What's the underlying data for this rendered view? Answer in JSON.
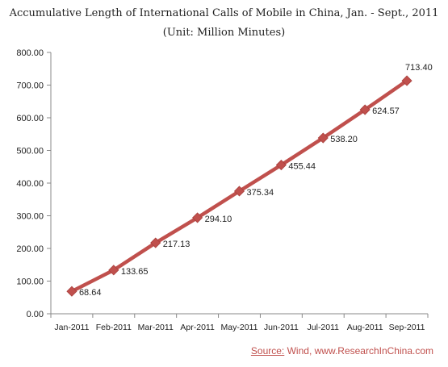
{
  "chart_data": {
    "type": "line",
    "title": "Accumulative Length of International Calls of Mobile in China, Jan. - Sept., 2011",
    "subtitle": "(Unit: Million Minutes)",
    "categories": [
      "Jan-2011",
      "Feb-2011",
      "Mar-2011",
      "Apr-2011",
      "May-2011",
      "Jun-2011",
      "Jul-2011",
      "Aug-2011",
      "Sep-2011"
    ],
    "series": [
      {
        "values": [
          68.64,
          133.65,
          217.13,
          294.1,
          375.34,
          455.44,
          538.2,
          624.57,
          713.4
        ],
        "data_labels": [
          "68.64",
          "133.65",
          "217.13",
          "294.10",
          "375.34",
          "455.44",
          "538.20",
          "624.57",
          "713.40"
        ],
        "color": "#c0504d"
      }
    ],
    "ylim": [
      0,
      800
    ],
    "y_ticks": [
      "0.00",
      "100.00",
      "200.00",
      "300.00",
      "400.00",
      "500.00",
      "600.00",
      "700.00",
      "800.00"
    ],
    "grid": false,
    "legend": "none"
  },
  "source": {
    "label": "Source:",
    "text": " Wind, www.ResearchInChina.com"
  },
  "colors": {
    "series": "#c0504d",
    "axis": "#888888",
    "text": "#222222"
  }
}
